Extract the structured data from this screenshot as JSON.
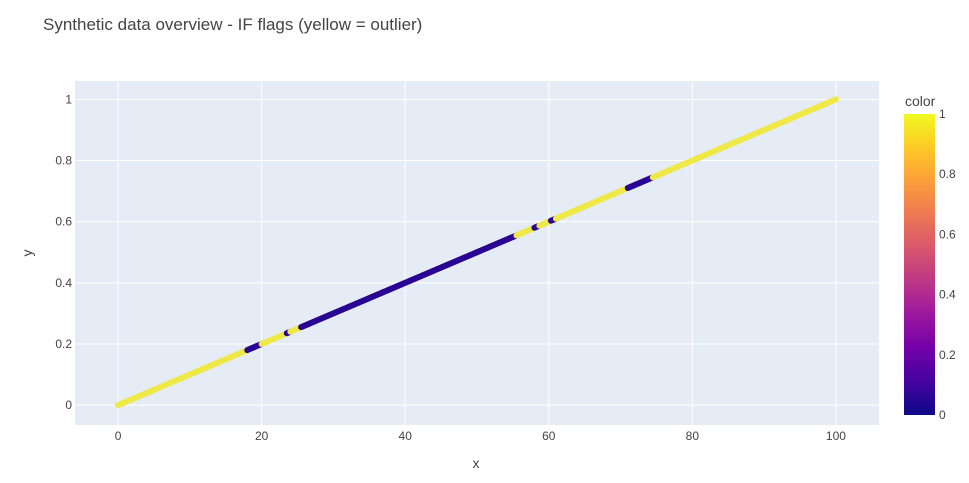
{
  "chart_data": {
    "type": "scatter",
    "title": "Synthetic data overview - IF flags (yellow = outlier)",
    "xlabel": "x",
    "ylabel": "y",
    "xlim": [
      -6,
      106
    ],
    "ylim": [
      -0.065,
      1.06
    ],
    "x_ticks": [
      0,
      20,
      40,
      60,
      80,
      100
    ],
    "y_ticks": [
      0,
      0.2,
      0.4,
      0.6,
      0.8,
      1
    ],
    "grid": true,
    "legend": "none",
    "colorbar": {
      "title": "color",
      "range": [
        0,
        1
      ],
      "ticks": [
        0,
        0.2,
        0.4,
        0.6,
        0.8,
        1
      ],
      "colorscale": [
        "#0d0887",
        "#46039f",
        "#7201a8",
        "#9c179e",
        "#bd3786",
        "#d8576b",
        "#ed7953",
        "#fb9f3a",
        "#fdca26",
        "#f0f921"
      ]
    },
    "relation": "y = x / 100",
    "x_range": [
      0,
      100
    ],
    "segments": [
      {
        "x_start": 0,
        "x_end": 18,
        "color_value": 1
      },
      {
        "x_start": 18,
        "x_end": 20,
        "color_value": 0
      },
      {
        "x_start": 20,
        "x_end": 23.5,
        "color_value": 1
      },
      {
        "x_start": 23.5,
        "x_end": 24,
        "color_value": 0
      },
      {
        "x_start": 24,
        "x_end": 25.5,
        "color_value": 1
      },
      {
        "x_start": 25.5,
        "x_end": 55.5,
        "color_value": 0
      },
      {
        "x_start": 55.5,
        "x_end": 58,
        "color_value": 1
      },
      {
        "x_start": 58,
        "x_end": 58.7,
        "color_value": 0
      },
      {
        "x_start": 58.7,
        "x_end": 60.3,
        "color_value": 1
      },
      {
        "x_start": 60.3,
        "x_end": 61,
        "color_value": 0
      },
      {
        "x_start": 61,
        "x_end": 71,
        "color_value": 1
      },
      {
        "x_start": 71,
        "x_end": 74.5,
        "color_value": 0
      },
      {
        "x_start": 74.5,
        "x_end": 100,
        "color_value": 1
      }
    ]
  },
  "colors": {
    "plot_bg": "#e5ecf6",
    "grid": "#ffffff",
    "inlier": "#2a0593",
    "outlier": "#efe948"
  }
}
